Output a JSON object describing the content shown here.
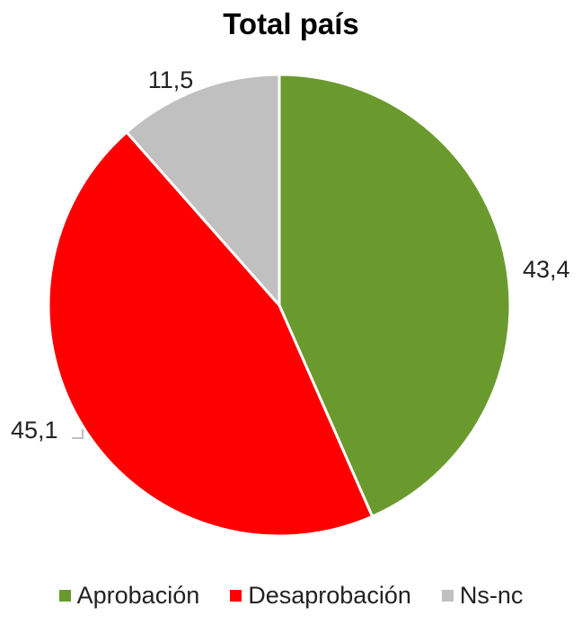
{
  "chart_data": {
    "type": "pie",
    "title": "Total país",
    "categories": [
      "Aprobación",
      "Desaprobación",
      "Ns-nc"
    ],
    "values": [
      43.4,
      45.1,
      11.5
    ],
    "value_labels": [
      "43,4",
      "45,1",
      "11,5"
    ],
    "colors": [
      "#6a9a2e",
      "#ff0000",
      "#c0c0c0"
    ],
    "start_angle_deg": 0,
    "direction": "clockwise",
    "legend_position": "bottom"
  }
}
